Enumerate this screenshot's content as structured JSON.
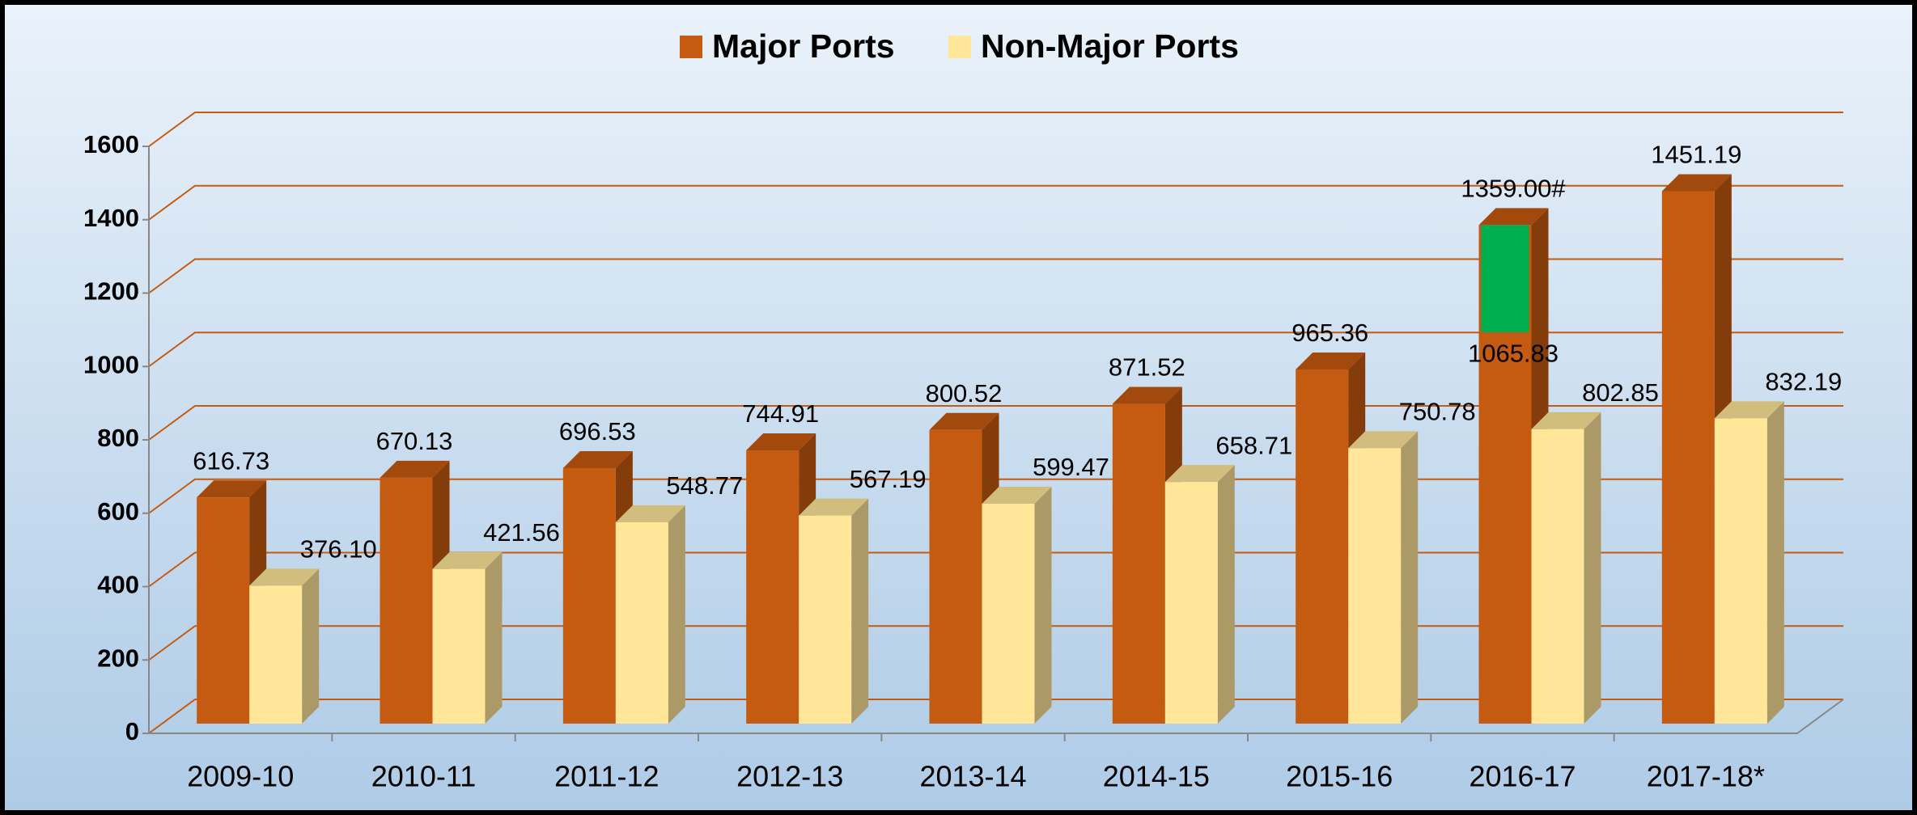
{
  "chart_data": {
    "type": "bar3d",
    "categories": [
      "2009-10",
      "2010-11",
      "2011-12",
      "2012-13",
      "2013-14",
      "2014-15",
      "2015-16",
      "2016-17",
      "2017-18*"
    ],
    "series": [
      {
        "name": "Major Ports",
        "color": "#c55a11",
        "values": [
          616.73,
          670.13,
          696.53,
          744.91,
          800.52,
          871.52,
          965.36,
          1065.83,
          1451.19
        ],
        "value_labels": [
          "616.73",
          "670.13",
          "696.53",
          "744.91",
          "800.52",
          "871.52",
          "965.36",
          "1065.83",
          "1451.19"
        ]
      },
      {
        "name": "Non-Major Ports",
        "color": "#ffe699",
        "values": [
          376.1,
          421.56,
          548.77,
          567.19,
          599.47,
          658.71,
          750.78,
          802.85,
          832.19
        ],
        "value_labels": [
          "376.10",
          "421.56",
          "548.77",
          "567.19",
          "599.47",
          "658.71",
          "750.78",
          "802.85",
          "832.19"
        ]
      }
    ],
    "highlight": {
      "series": 0,
      "category": 7,
      "value": 1359.0,
      "label": "1359.00#",
      "color": "#00b050"
    },
    "ylim": [
      0,
      1600
    ],
    "yticks": [
      0,
      200,
      400,
      600,
      800,
      1000,
      1200,
      1400,
      1600
    ],
    "grid": true,
    "grid_color": "#c55a11",
    "legend": "top"
  }
}
